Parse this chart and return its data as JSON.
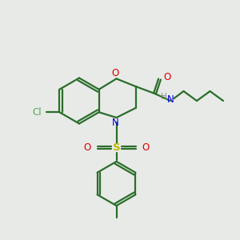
{
  "bg_color": "#e8eae8",
  "bond_color": "#2a6e2a",
  "N_color": "#0000ee",
  "O_color": "#dd0000",
  "S_color": "#bbbb00",
  "Cl_color": "#55aa55",
  "H_color": "#888888",
  "line_width": 1.6,
  "fig_size": [
    3.0,
    3.0
  ],
  "dpi": 100,
  "xlim": [
    0,
    10
  ],
  "ylim": [
    0,
    10
  ]
}
